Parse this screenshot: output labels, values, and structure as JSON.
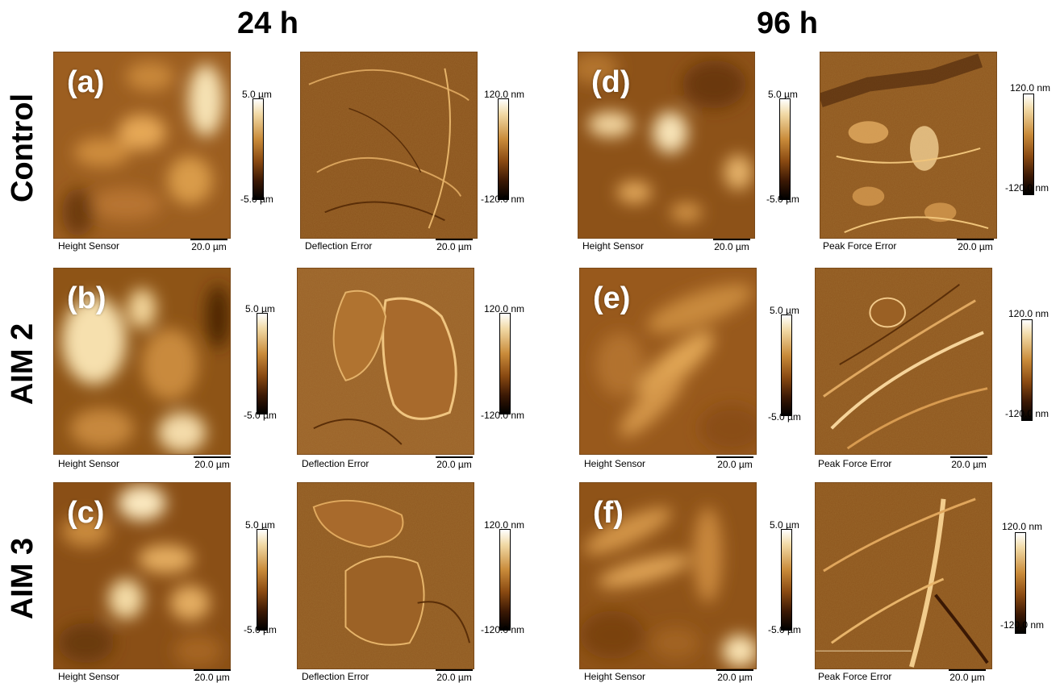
{
  "columns": {
    "left_title": "24 h",
    "right_title": "96 h"
  },
  "rows": {
    "row1": "Control",
    "row2": "AIM 2",
    "row3": "AIM 3"
  },
  "panels": {
    "a": "(a)",
    "b": "(b)",
    "c": "(c)",
    "d": "(d)",
    "e": "(e)",
    "f": "(f)"
  },
  "captions": {
    "height": "Height Sensor",
    "deflection": "Deflection Error",
    "peak_force": "Peak Force Error",
    "scale": "20.0 µm"
  },
  "colorbars": {
    "height_top": "5.0 µm",
    "height_bottom": "-5.0 µm",
    "error_top": "120.0 nm",
    "error_bottom": "-120.0 nm"
  },
  "colors": {
    "afm_dark": "#6b3a0a",
    "afm_mid": "#a9692b",
    "afm_light": "#f3dcae"
  }
}
